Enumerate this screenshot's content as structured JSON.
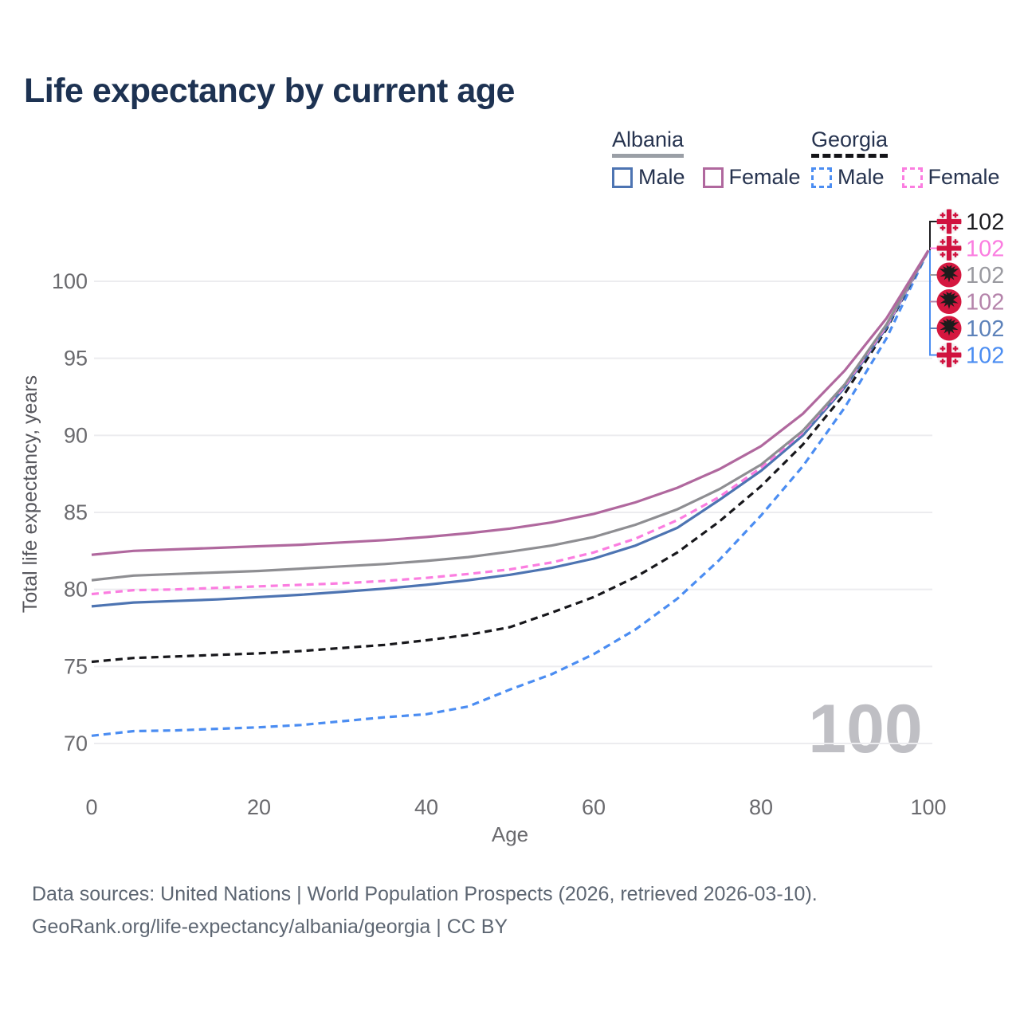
{
  "title": "Life expectancy by current age",
  "watermark_age": "100",
  "legend": {
    "groups": [
      {
        "id": "albania",
        "label": "Albania",
        "underline": "solid",
        "items": [
          {
            "id": "albania_male",
            "label": "Male",
            "swatch_color": "#4d74b2",
            "dashed": false
          },
          {
            "id": "albania_female",
            "label": "Female",
            "swatch_color": "#b0689e",
            "dashed": false
          }
        ]
      },
      {
        "id": "georgia",
        "label": "Georgia",
        "underline": "dashed",
        "items": [
          {
            "id": "georgia_male",
            "label": "Male",
            "swatch_color": "#4b8df2",
            "dashed": true
          },
          {
            "id": "georgia_female",
            "label": "Female",
            "swatch_color": "#fb7de0",
            "dashed": true
          }
        ]
      }
    ]
  },
  "chart_data": {
    "type": "line",
    "title": "Life expectancy by current age",
    "xlabel": "Age",
    "ylabel": "Total life expectancy, years",
    "xlim": [
      0,
      100
    ],
    "ylim": [
      70,
      102
    ],
    "xticks": [
      0,
      20,
      40,
      60,
      80,
      100
    ],
    "yticks": [
      70,
      75,
      80,
      85,
      90,
      95,
      100
    ],
    "grid": "horizontal",
    "legend_position": "top-right",
    "x": [
      0,
      5,
      10,
      15,
      20,
      25,
      30,
      35,
      40,
      45,
      50,
      55,
      60,
      65,
      70,
      75,
      80,
      85,
      90,
      95,
      100
    ],
    "series": [
      {
        "id": "georgia_male",
        "country": "Georgia",
        "sex": "Male",
        "color": "#4b8df2",
        "dashed": true,
        "values": [
          70.5,
          70.8,
          70.85,
          70.95,
          71.05,
          71.2,
          71.45,
          71.7,
          71.9,
          72.4,
          73.5,
          74.5,
          75.8,
          77.4,
          79.4,
          81.9,
          84.8,
          88.0,
          91.8,
          96.3,
          102
        ]
      },
      {
        "id": "georgia_total",
        "country": "Georgia",
        "sex": "Total",
        "color": "#17171b",
        "dashed": true,
        "values": [
          75.3,
          75.55,
          75.65,
          75.75,
          75.85,
          76.0,
          76.2,
          76.4,
          76.7,
          77.05,
          77.55,
          78.5,
          79.5,
          80.8,
          82.4,
          84.4,
          86.7,
          89.4,
          92.7,
          96.9,
          102
        ]
      },
      {
        "id": "albania_male",
        "country": "Albania",
        "sex": "Male",
        "color": "#4d74b2",
        "dashed": false,
        "values": [
          78.9,
          79.15,
          79.25,
          79.35,
          79.5,
          79.65,
          79.85,
          80.05,
          80.3,
          80.6,
          80.95,
          81.4,
          82.0,
          82.85,
          84.0,
          85.8,
          87.7,
          90.0,
          93.1,
          97.0,
          102
        ]
      },
      {
        "id": "georgia_female",
        "country": "Georgia",
        "sex": "Female",
        "color": "#fb7de0",
        "dashed": true,
        "values": [
          79.7,
          79.95,
          80.0,
          80.1,
          80.2,
          80.3,
          80.4,
          80.55,
          80.75,
          81.0,
          81.3,
          81.75,
          82.4,
          83.3,
          84.5,
          86.0,
          87.9,
          90.2,
          93.2,
          97.1,
          102
        ]
      },
      {
        "id": "albania_total",
        "country": "Albania",
        "sex": "Total",
        "color": "#8e8e92",
        "dashed": false,
        "values": [
          80.6,
          80.9,
          81.0,
          81.1,
          81.2,
          81.35,
          81.5,
          81.65,
          81.85,
          82.1,
          82.45,
          82.85,
          83.4,
          84.2,
          85.2,
          86.5,
          88.1,
          90.3,
          93.3,
          97.2,
          102
        ]
      },
      {
        "id": "albania_female",
        "country": "Albania",
        "sex": "Female",
        "color": "#b0689e",
        "dashed": false,
        "values": [
          82.25,
          82.5,
          82.6,
          82.7,
          82.8,
          82.9,
          83.05,
          83.2,
          83.4,
          83.65,
          83.95,
          84.35,
          84.9,
          85.65,
          86.6,
          87.8,
          89.3,
          91.4,
          94.2,
          97.6,
          102
        ]
      }
    ]
  },
  "end_labels": [
    {
      "series": "georgia_total",
      "flag": "georgia",
      "text": "102",
      "color": "#1c1c20"
    },
    {
      "series": "georgia_female",
      "flag": "georgia",
      "text": "102",
      "color": "#fb7de0"
    },
    {
      "series": "albania_total",
      "flag": "albania",
      "text": "102",
      "color": "#9a9aa0"
    },
    {
      "series": "albania_female",
      "flag": "albania",
      "text": "102",
      "color": "#b584ab"
    },
    {
      "series": "albania_male",
      "flag": "albania",
      "text": "102",
      "color": "#5d82ba"
    },
    {
      "series": "georgia_male",
      "flag": "georgia",
      "text": "102",
      "color": "#4b8df2"
    }
  ],
  "footer": {
    "line1": "Data sources: United Nations | World Population Prospects (2026, retrieved 2026-03-10).",
    "line2": "GeoRank.org/life-expectancy/albania/georgia | CC BY"
  },
  "colors": {
    "title": "#1d3252",
    "grid": "#ececef",
    "axis_text": "#6a6a6e",
    "axis_title_text": "#58585e",
    "watermark": "#bfbfc4",
    "footer_text": "#5d6672",
    "georgia_flag_red": "#d0123f",
    "georgia_flag_bg": "#f4f4f5",
    "albania_flag_red": "#d5173f",
    "albania_eagle_black": "#1c1c1c"
  }
}
